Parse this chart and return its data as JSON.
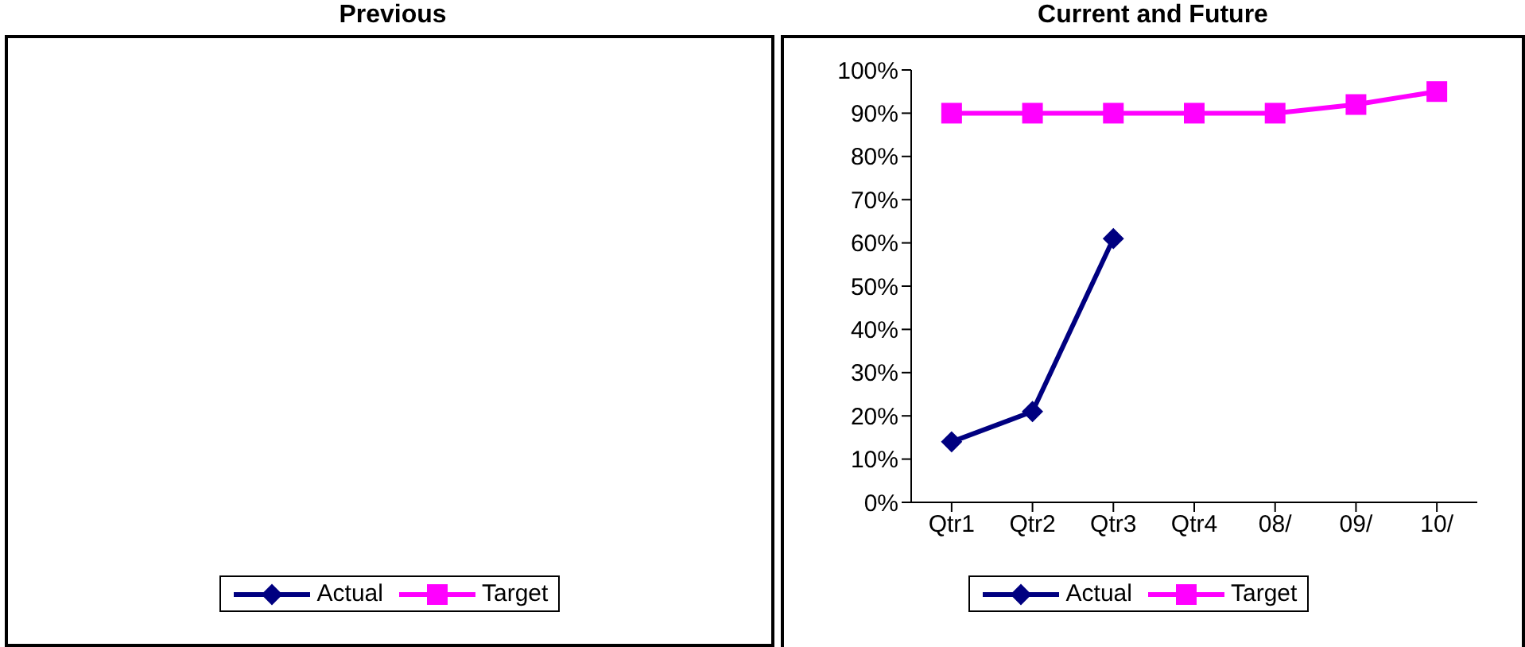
{
  "chart_data": [
    {
      "type": "other",
      "title": "Previous",
      "series": [
        {
          "name": "Actual",
          "color": "#000080",
          "marker": "diamond"
        },
        {
          "name": "Target",
          "color": "#ff00ff",
          "marker": "square"
        }
      ],
      "legend": "bottom"
    },
    {
      "type": "line",
      "title": "Current and Future",
      "categories": [
        "Qtr1",
        "Qtr2",
        "Qtr3",
        "Qtr4",
        "08/",
        "09/",
        "10/"
      ],
      "series": [
        {
          "name": "Actual",
          "color": "#000080",
          "marker": "diamond",
          "values": [
            14,
            21,
            61,
            null,
            null,
            null,
            null
          ]
        },
        {
          "name": "Target",
          "color": "#ff00ff",
          "marker": "square",
          "values": [
            90,
            90,
            90,
            90,
            90,
            92,
            95
          ]
        }
      ],
      "ylim": [
        0,
        100
      ],
      "yticks": [
        {
          "value": 0,
          "label": "0%"
        },
        {
          "value": 10,
          "label": "10%"
        },
        {
          "value": 20,
          "label": "20%"
        },
        {
          "value": 30,
          "label": "30%"
        },
        {
          "value": 40,
          "label": "40%"
        },
        {
          "value": 50,
          "label": "50%"
        },
        {
          "value": 60,
          "label": "60%"
        },
        {
          "value": 70,
          "label": "70%"
        },
        {
          "value": 80,
          "label": "80%"
        },
        {
          "value": 90,
          "label": "90%"
        },
        {
          "value": 100,
          "label": "100%"
        }
      ],
      "legend": "bottom",
      "grid": false
    }
  ]
}
